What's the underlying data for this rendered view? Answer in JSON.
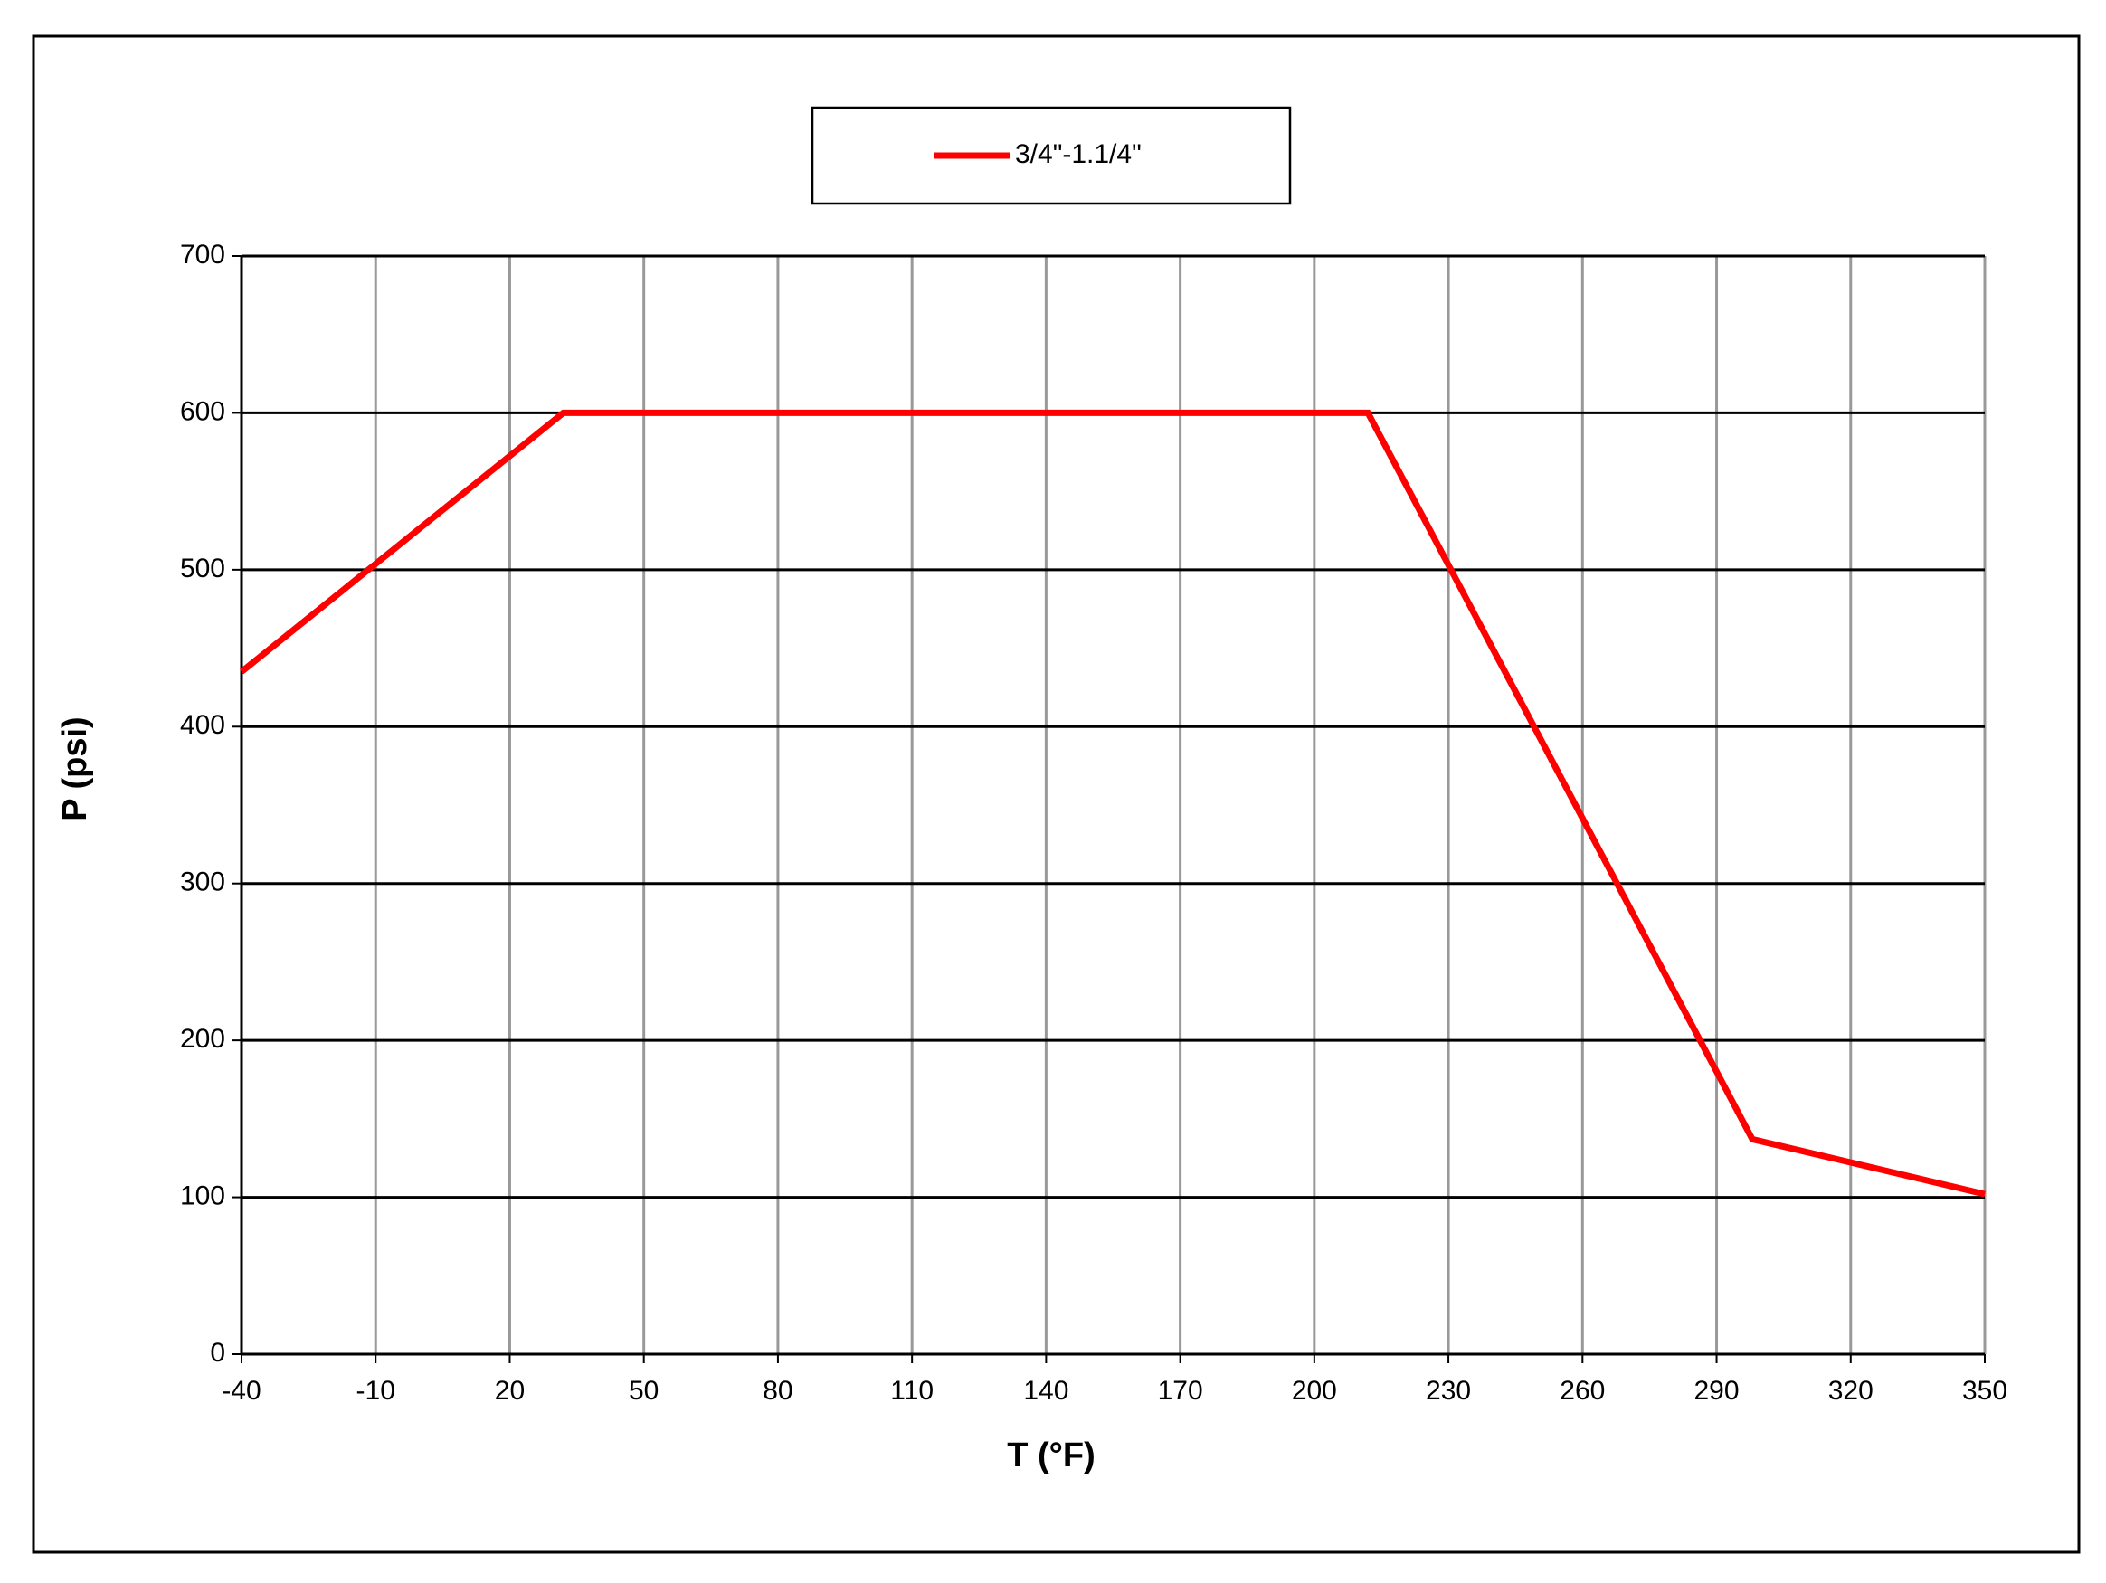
{
  "chart_data": {
    "type": "line",
    "x_label": "T (°F)",
    "y_label": "P (psi)",
    "series": [
      {
        "name": "3/4\"-1.1/4\"",
        "color": "#ff0000",
        "x": [
          -40,
          32,
          212,
          298,
          350
        ],
        "values": [
          435,
          600,
          600,
          137,
          102
        ]
      }
    ],
    "xlim": [
      -40,
      350
    ],
    "xticks": [
      -40,
      -10,
      20,
      50,
      80,
      110,
      140,
      170,
      200,
      230,
      260,
      290,
      320,
      350
    ],
    "ylim": [
      0,
      700
    ],
    "yticks": [
      0,
      100,
      200,
      300,
      400,
      500,
      600,
      700
    ],
    "grid": true,
    "legend": "top"
  }
}
